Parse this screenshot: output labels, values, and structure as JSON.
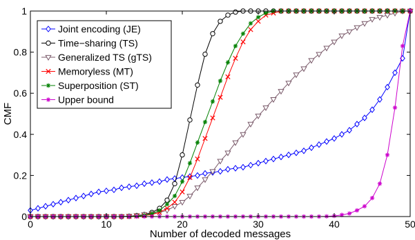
{
  "chart_data": {
    "type": "line",
    "xlabel": "Number of decoded messages",
    "ylabel": "CMF",
    "xlim": [
      0,
      50
    ],
    "ylim": [
      0,
      1
    ],
    "xticks": [
      0,
      10,
      20,
      30,
      40,
      50
    ],
    "yticks": [
      0,
      0.2,
      0.4,
      0.6,
      0.8,
      1
    ],
    "xtick_labels": [
      "0",
      "10",
      "20",
      "30",
      "40",
      "50"
    ],
    "ytick_labels": [
      "0",
      "0.2",
      "0.4",
      "0.6",
      "0.8",
      "1"
    ],
    "grid": false,
    "legend_position": "top-left",
    "x": [
      0,
      1,
      2,
      3,
      4,
      5,
      6,
      7,
      8,
      9,
      10,
      11,
      12,
      13,
      14,
      15,
      16,
      17,
      18,
      19,
      20,
      21,
      22,
      23,
      24,
      25,
      26,
      27,
      28,
      29,
      30,
      31,
      32,
      33,
      34,
      35,
      36,
      37,
      38,
      39,
      40,
      41,
      42,
      43,
      44,
      45,
      46,
      47,
      48,
      49,
      50
    ],
    "series": [
      {
        "name": "Joint encoding (JE)",
        "color": "#0000ff",
        "marker": "diamond",
        "values": [
          0.03,
          0.04,
          0.05,
          0.06,
          0.07,
          0.08,
          0.09,
          0.1,
          0.11,
          0.12,
          0.125,
          0.13,
          0.14,
          0.145,
          0.15,
          0.16,
          0.165,
          0.17,
          0.18,
          0.185,
          0.19,
          0.195,
          0.2,
          0.21,
          0.215,
          0.22,
          0.23,
          0.235,
          0.24,
          0.25,
          0.26,
          0.27,
          0.28,
          0.29,
          0.3,
          0.31,
          0.32,
          0.335,
          0.35,
          0.365,
          0.38,
          0.4,
          0.42,
          0.45,
          0.48,
          0.52,
          0.57,
          0.63,
          0.7,
          0.77,
          1.0
        ]
      },
      {
        "name": "Time−sharing (TS)",
        "color": "#000000",
        "marker": "circle",
        "values": [
          0,
          0,
          0,
          0,
          0,
          0,
          0,
          0,
          0,
          0,
          0,
          0,
          0,
          0.002,
          0.005,
          0.01,
          0.02,
          0.04,
          0.08,
          0.16,
          0.3,
          0.47,
          0.64,
          0.79,
          0.89,
          0.95,
          0.98,
          0.995,
          1,
          1,
          1,
          1,
          1,
          1,
          1,
          1,
          1,
          1,
          1,
          1,
          1,
          1,
          1,
          1,
          1,
          1,
          1,
          1,
          1,
          1,
          1
        ]
      },
      {
        "name": "Generalized TS (gTS)",
        "color": "#7a5a6a",
        "marker": "triangle-down",
        "values": [
          0,
          0,
          0,
          0,
          0,
          0,
          0,
          0,
          0,
          0,
          0,
          0,
          0,
          0.002,
          0.005,
          0.01,
          0.015,
          0.02,
          0.03,
          0.05,
          0.07,
          0.1,
          0.14,
          0.18,
          0.22,
          0.27,
          0.31,
          0.36,
          0.4,
          0.45,
          0.49,
          0.53,
          0.57,
          0.61,
          0.65,
          0.69,
          0.72,
          0.76,
          0.79,
          0.82,
          0.85,
          0.88,
          0.9,
          0.92,
          0.94,
          0.96,
          0.97,
          0.98,
          0.99,
          1.0,
          1.0
        ]
      },
      {
        "name": "Memoryless (MT)",
        "color": "#ff0000",
        "marker": "x",
        "values": [
          0,
          0,
          0,
          0,
          0,
          0,
          0,
          0,
          0,
          0,
          0,
          0,
          0,
          0,
          0.002,
          0.005,
          0.01,
          0.02,
          0.04,
          0.07,
          0.12,
          0.19,
          0.28,
          0.38,
          0.48,
          0.58,
          0.68,
          0.77,
          0.85,
          0.91,
          0.95,
          0.98,
          0.99,
          1,
          1,
          1,
          1,
          1,
          1,
          1,
          1,
          1,
          1,
          1,
          1,
          1,
          1,
          1,
          1,
          1,
          1
        ]
      },
      {
        "name": "Superposition (ST)",
        "color": "#008000",
        "marker": "star",
        "values": [
          0,
          0,
          0,
          0,
          0,
          0,
          0,
          0,
          0,
          0,
          0,
          0,
          0,
          0,
          0.002,
          0.006,
          0.014,
          0.03,
          0.06,
          0.1,
          0.17,
          0.26,
          0.36,
          0.46,
          0.56,
          0.66,
          0.75,
          0.83,
          0.89,
          0.94,
          0.97,
          0.99,
          1,
          1,
          1,
          1,
          1,
          1,
          1,
          1,
          1,
          1,
          1,
          1,
          1,
          1,
          1,
          1,
          1,
          1,
          1
        ]
      },
      {
        "name": "Upper bound",
        "color": "#cc00cc",
        "marker": "star",
        "values": [
          0,
          0,
          0,
          0,
          0,
          0,
          0,
          0,
          0,
          0,
          0,
          0,
          0,
          0,
          0,
          0,
          0,
          0,
          0,
          0,
          0,
          0,
          0,
          0,
          0,
          0,
          0,
          0,
          0,
          0,
          0,
          0,
          0,
          0,
          0,
          0,
          0,
          0,
          0,
          0.001,
          0.003,
          0.008,
          0.015,
          0.03,
          0.05,
          0.09,
          0.16,
          0.3,
          0.53,
          0.83,
          1.0
        ]
      }
    ]
  }
}
